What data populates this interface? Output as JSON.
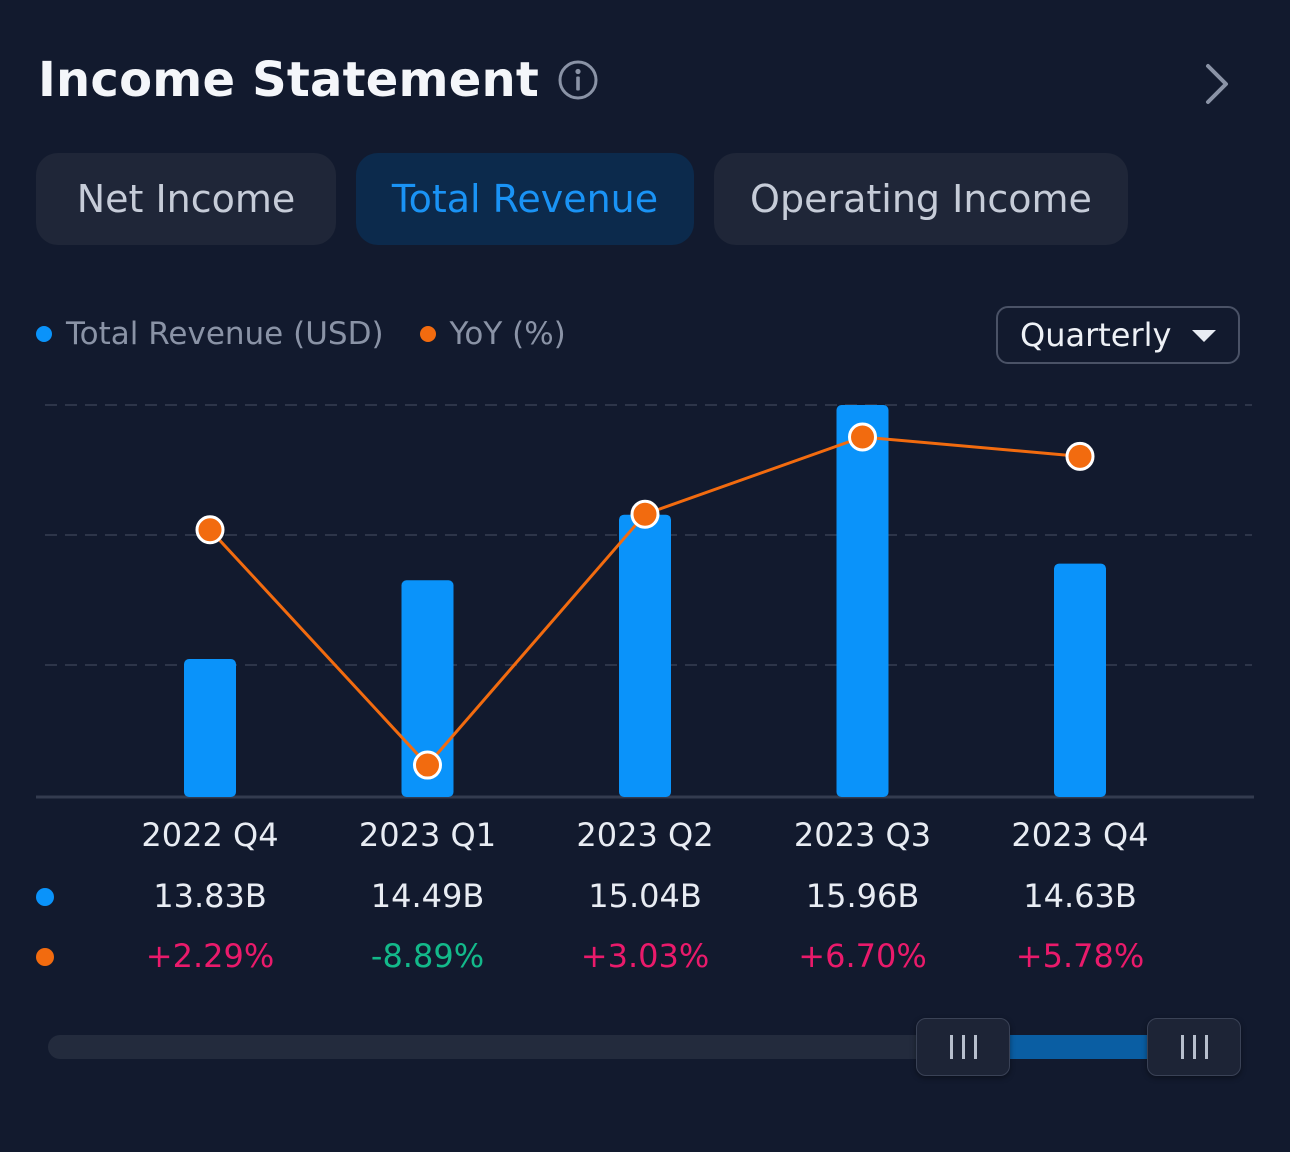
{
  "header": {
    "title": "Income Statement"
  },
  "tabs": [
    {
      "label": "Net Income",
      "active": false
    },
    {
      "label": "Total Revenue",
      "active": true
    },
    {
      "label": "Operating Income",
      "active": false
    }
  ],
  "legend": {
    "revenue_label": "Total Revenue (USD)",
    "yoy_label": "YoY (%)"
  },
  "period_select": {
    "value": "Quarterly"
  },
  "colors": {
    "revenue": "#0a93fa",
    "yoy_line": "#f26b0f",
    "positive": "#ea1a6b",
    "negative": "#13b98a",
    "background": "#121a2e"
  },
  "chart_data": {
    "type": "bar",
    "categories": [
      "2022 Q4",
      "2023 Q1",
      "2023 Q2",
      "2023 Q3",
      "2023 Q4"
    ],
    "series": [
      {
        "name": "Total Revenue (USD)",
        "type": "bar",
        "values": [
          13.83,
          14.49,
          15.04,
          15.96,
          14.63
        ],
        "labels": [
          "13.83B",
          "14.49B",
          "15.04B",
          "15.96B",
          "14.63B"
        ]
      },
      {
        "name": "YoY (%)",
        "type": "line",
        "values": [
          2.29,
          -8.89,
          3.03,
          6.7,
          5.78
        ],
        "labels": [
          "+2.29%",
          "-8.89%",
          "+3.03%",
          "+6.70%",
          "+5.78%"
        ]
      }
    ],
    "grid": true,
    "legend_position": "top-left"
  }
}
